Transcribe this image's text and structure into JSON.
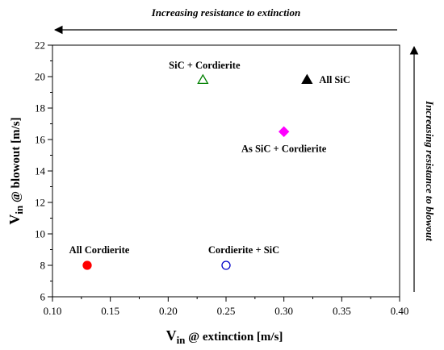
{
  "chart_data": {
    "type": "scatter",
    "title": "",
    "xlabel": {
      "main": "V",
      "sub": "in",
      "rest": " @ extinction [m/s]"
    },
    "ylabel": {
      "main": "V",
      "sub": "in",
      "rest": " @ blowout [m/s]"
    },
    "xlim": [
      0.1,
      0.4
    ],
    "ylim": [
      6,
      22
    ],
    "xticks": [
      "0.10",
      "0.15",
      "0.20",
      "0.25",
      "0.30",
      "0.35",
      "0.40"
    ],
    "yticks": [
      "6",
      "8",
      "10",
      "12",
      "14",
      "16",
      "18",
      "20",
      "22"
    ],
    "grid": false,
    "legend": "none",
    "points": [
      {
        "label": "All Cordierite",
        "x": 0.13,
        "y": 8.0,
        "marker": "circle",
        "filled": true,
        "color": "#ff0000"
      },
      {
        "label": "Cordierite + SiC",
        "x": 0.25,
        "y": 8.0,
        "marker": "circle",
        "filled": false,
        "color": "#0000c8"
      },
      {
        "label": "SiC + Cordierite",
        "x": 0.23,
        "y": 19.8,
        "marker": "triangle",
        "filled": false,
        "color": "#008000"
      },
      {
        "label": "All SiC",
        "x": 0.32,
        "y": 19.8,
        "marker": "triangle",
        "filled": true,
        "color": "#000000"
      },
      {
        "label": "As SiC + Cordierite",
        "x": 0.3,
        "y": 16.5,
        "marker": "diamond",
        "filled": true,
        "color": "#ff00ff"
      }
    ],
    "annotations": {
      "top_arrow": {
        "text": "Increasing resistance to extinction",
        "direction": "left"
      },
      "right_arrow": {
        "text": "Increasing resistance to blowout",
        "direction": "up"
      }
    }
  }
}
